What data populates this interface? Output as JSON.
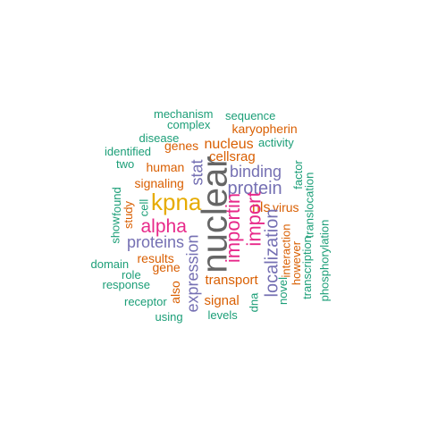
{
  "colors": {
    "teal": "#1b9e77",
    "orange": "#d95f02",
    "purple": "#7570b3",
    "magenta": "#e7298a",
    "gold": "#e6ab02",
    "gray": "#666666"
  },
  "words": [
    {
      "text": "mechanism",
      "color": "teal"
    },
    {
      "text": "sequence",
      "color": "teal"
    },
    {
      "text": "complex",
      "color": "teal"
    },
    {
      "text": "karyopherin",
      "color": "orange"
    },
    {
      "text": "disease",
      "color": "teal"
    },
    {
      "text": "genes",
      "color": "orange"
    },
    {
      "text": "nucleus",
      "color": "orange"
    },
    {
      "text": "activity",
      "color": "teal"
    },
    {
      "text": "identified",
      "color": "teal"
    },
    {
      "text": "cellsrag",
      "color": "orange"
    },
    {
      "text": "two",
      "color": "teal"
    },
    {
      "text": "human",
      "color": "orange"
    },
    {
      "text": "stat",
      "color": "purple"
    },
    {
      "text": "binding",
      "color": "purple"
    },
    {
      "text": "factor",
      "color": "teal"
    },
    {
      "text": "signaling",
      "color": "orange"
    },
    {
      "text": "protein",
      "color": "purple"
    },
    {
      "text": "found",
      "color": "teal"
    },
    {
      "text": "kpna",
      "color": "gold"
    },
    {
      "text": "translocation",
      "color": "teal"
    },
    {
      "text": "study",
      "color": "orange"
    },
    {
      "text": "cell",
      "color": "teal"
    },
    {
      "text": "show",
      "color": "teal"
    },
    {
      "text": "nls",
      "color": "orange"
    },
    {
      "text": "virus",
      "color": "orange"
    },
    {
      "text": "alpha",
      "color": "magenta"
    },
    {
      "text": "nuclear",
      "color": "gray"
    },
    {
      "text": "importin",
      "color": "magenta"
    },
    {
      "text": "import",
      "color": "magenta"
    },
    {
      "text": "phosphorylation",
      "color": "teal"
    },
    {
      "text": "proteins",
      "color": "purple"
    },
    {
      "text": "results",
      "color": "orange"
    },
    {
      "text": "interaction",
      "color": "orange"
    },
    {
      "text": "domain",
      "color": "teal"
    },
    {
      "text": "gene",
      "color": "orange"
    },
    {
      "text": "localization",
      "color": "purple"
    },
    {
      "text": "however",
      "color": "orange"
    },
    {
      "text": "transcription",
      "color": "teal"
    },
    {
      "text": "role",
      "color": "teal"
    },
    {
      "text": "expression",
      "color": "purple"
    },
    {
      "text": "response",
      "color": "teal"
    },
    {
      "text": "transport",
      "color": "orange"
    },
    {
      "text": "novel",
      "color": "teal"
    },
    {
      "text": "also",
      "color": "orange"
    },
    {
      "text": "receptor",
      "color": "teal"
    },
    {
      "text": "dna",
      "color": "teal"
    },
    {
      "text": "signal",
      "color": "orange"
    },
    {
      "text": "using",
      "color": "teal"
    },
    {
      "text": "levels",
      "color": "teal"
    }
  ]
}
